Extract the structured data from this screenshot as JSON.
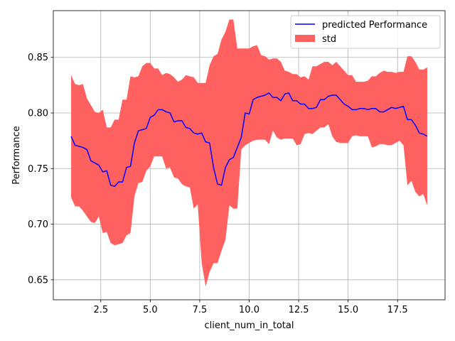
{
  "chart_data": {
    "type": "line",
    "xlabel": "client_num_in_total",
    "ylabel": "Performance",
    "xlim": [
      0.1,
      19.9
    ],
    "ylim": [
      0.632,
      0.892
    ],
    "xticks": [
      "2.5",
      "5.0",
      "7.5",
      "10.0",
      "12.5",
      "15.0",
      "17.5"
    ],
    "yticks": [
      "0.65",
      "0.70",
      "0.75",
      "0.80",
      "0.85"
    ],
    "grid": true,
    "legend_position": "top-right",
    "colors": {
      "line": "#0000ff",
      "band": "#ff6060",
      "grid": "#b0b0b0",
      "axes": "#000000"
    },
    "series": [
      {
        "name": "predicted Performance",
        "kind": "line",
        "x": [
          1.0,
          1.2,
          1.4,
          1.6,
          1.8,
          2.0,
          2.2,
          2.4,
          2.6,
          2.8,
          3.0,
          3.2,
          3.4,
          3.6,
          3.8,
          4.0,
          4.2,
          4.4,
          4.6,
          4.8,
          5.0,
          5.2,
          5.4,
          5.6,
          5.8,
          6.0,
          6.2,
          6.4,
          6.6,
          6.8,
          7.0,
          7.2,
          7.4,
          7.6,
          7.8,
          8.0,
          8.2,
          8.4,
          8.6,
          8.8,
          9.0,
          9.2,
          9.4,
          9.6,
          9.8,
          10.0,
          10.2,
          10.4,
          10.6,
          10.8,
          11.0,
          11.2,
          11.4,
          11.6,
          11.8,
          12.0,
          12.2,
          12.4,
          12.6,
          12.8,
          13.0,
          13.2,
          13.4,
          13.6,
          13.8,
          14.0,
          14.2,
          14.4,
          14.6,
          14.8,
          15.0,
          15.2,
          15.4,
          15.6,
          15.8,
          16.0,
          16.2,
          16.4,
          16.6,
          16.8,
          17.0,
          17.2,
          17.4,
          17.6,
          17.8,
          18.0,
          18.2,
          18.4,
          18.6,
          18.8,
          19.0
        ],
        "y": [
          0.779,
          0.771,
          0.77,
          0.769,
          0.767,
          0.757,
          0.755,
          0.753,
          0.747,
          0.748,
          0.735,
          0.734,
          0.738,
          0.738,
          0.751,
          0.752,
          0.773,
          0.784,
          0.785,
          0.786,
          0.796,
          0.798,
          0.803,
          0.803,
          0.801,
          0.8,
          0.792,
          0.793,
          0.793,
          0.787,
          0.786,
          0.782,
          0.781,
          0.782,
          0.774,
          0.773,
          0.751,
          0.736,
          0.735,
          0.751,
          0.758,
          0.76,
          0.769,
          0.778,
          0.8,
          0.799,
          0.812,
          0.814,
          0.815,
          0.816,
          0.818,
          0.814,
          0.814,
          0.811,
          0.817,
          0.818,
          0.811,
          0.811,
          0.808,
          0.808,
          0.804,
          0.804,
          0.805,
          0.812,
          0.812,
          0.815,
          0.816,
          0.816,
          0.812,
          0.808,
          0.806,
          0.803,
          0.803,
          0.804,
          0.804,
          0.803,
          0.804,
          0.804,
          0.801,
          0.801,
          0.803,
          0.805,
          0.804,
          0.805,
          0.806,
          0.794,
          0.794,
          0.789,
          0.782,
          0.781,
          0.779
        ]
      },
      {
        "name": "std",
        "kind": "band",
        "x": [
          1.0,
          1.2,
          1.4,
          1.6,
          1.8,
          2.0,
          2.2,
          2.4,
          2.6,
          2.8,
          3.0,
          3.2,
          3.4,
          3.6,
          3.8,
          4.0,
          4.2,
          4.4,
          4.6,
          4.8,
          5.0,
          5.2,
          5.4,
          5.6,
          5.8,
          6.0,
          6.2,
          6.4,
          6.6,
          6.8,
          7.0,
          7.2,
          7.4,
          7.6,
          7.8,
          8.0,
          8.2,
          8.4,
          8.6,
          8.8,
          9.0,
          9.2,
          9.4,
          9.6,
          9.8,
          10.0,
          10.2,
          10.4,
          10.6,
          10.8,
          11.0,
          11.2,
          11.4,
          11.6,
          11.8,
          12.0,
          12.2,
          12.4,
          12.6,
          12.8,
          13.0,
          13.2,
          13.4,
          13.6,
          13.8,
          14.0,
          14.2,
          14.4,
          14.6,
          14.8,
          15.0,
          15.2,
          15.4,
          15.6,
          15.8,
          16.0,
          16.2,
          16.4,
          16.6,
          16.8,
          17.0,
          17.2,
          17.4,
          17.6,
          17.8,
          18.0,
          18.2,
          18.4,
          18.6,
          18.8,
          19.0
        ],
        "upper": [
          0.834,
          0.826,
          0.825,
          0.826,
          0.813,
          0.807,
          0.801,
          0.8,
          0.803,
          0.787,
          0.787,
          0.794,
          0.794,
          0.812,
          0.812,
          0.833,
          0.832,
          0.833,
          0.842,
          0.845,
          0.845,
          0.84,
          0.84,
          0.834,
          0.836,
          0.835,
          0.832,
          0.828,
          0.83,
          0.834,
          0.833,
          0.832,
          0.827,
          0.827,
          0.827,
          0.843,
          0.851,
          0.853,
          0.866,
          0.873,
          0.884,
          0.884,
          0.858,
          0.858,
          0.858,
          0.858,
          0.86,
          0.861,
          0.852,
          0.851,
          0.848,
          0.849,
          0.849,
          0.846,
          0.838,
          0.837,
          0.835,
          0.835,
          0.832,
          0.833,
          0.83,
          0.842,
          0.842,
          0.844,
          0.846,
          0.846,
          0.843,
          0.846,
          0.842,
          0.838,
          0.834,
          0.834,
          0.828,
          0.828,
          0.828,
          0.829,
          0.833,
          0.833,
          0.836,
          0.838,
          0.837,
          0.837,
          0.836,
          0.837,
          0.837,
          0.851,
          0.851,
          0.846,
          0.839,
          0.839,
          0.841
        ],
        "lower": [
          0.724,
          0.716,
          0.716,
          0.712,
          0.707,
          0.702,
          0.701,
          0.707,
          0.692,
          0.693,
          0.683,
          0.681,
          0.682,
          0.683,
          0.69,
          0.692,
          0.725,
          0.737,
          0.738,
          0.748,
          0.752,
          0.761,
          0.761,
          0.761,
          0.75,
          0.751,
          0.742,
          0.741,
          0.736,
          0.734,
          0.733,
          0.714,
          0.718,
          0.665,
          0.644,
          0.657,
          0.665,
          0.665,
          0.676,
          0.686,
          0.717,
          0.714,
          0.714,
          0.767,
          0.771,
          0.773,
          0.775,
          0.776,
          0.776,
          0.776,
          0.772,
          0.784,
          0.778,
          0.776,
          0.777,
          0.777,
          0.777,
          0.771,
          0.772,
          0.781,
          0.782,
          0.781,
          0.784,
          0.787,
          0.787,
          0.79,
          0.779,
          0.774,
          0.773,
          0.773,
          0.773,
          0.779,
          0.78,
          0.779,
          0.779,
          0.779,
          0.769,
          0.77,
          0.772,
          0.772,
          0.771,
          0.771,
          0.773,
          0.775,
          0.771,
          0.735,
          0.739,
          0.729,
          0.725,
          0.727,
          0.717
        ]
      }
    ]
  }
}
